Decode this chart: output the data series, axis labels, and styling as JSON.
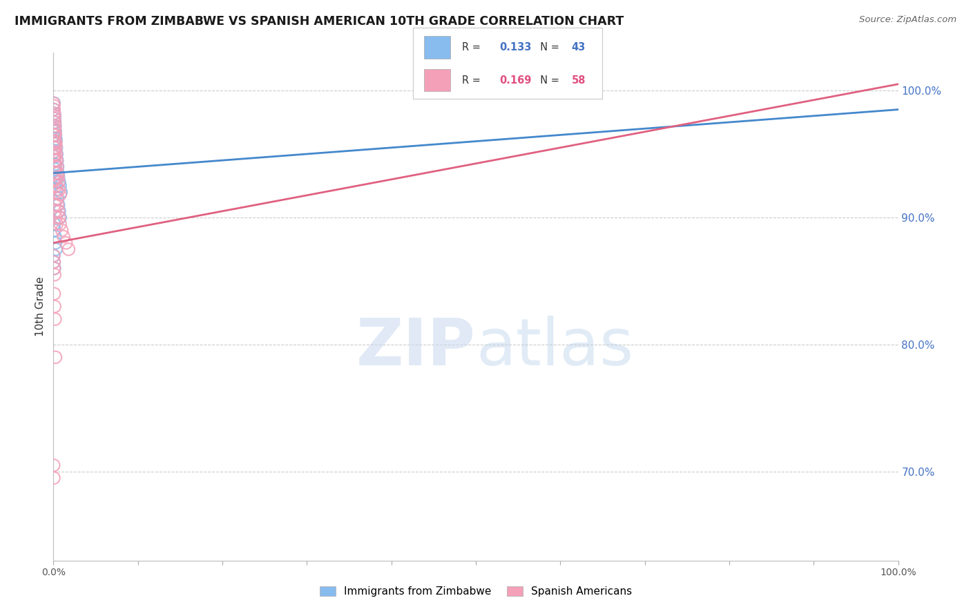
{
  "title": "IMMIGRANTS FROM ZIMBABWE VS SPANISH AMERICAN 10TH GRADE CORRELATION CHART",
  "source": "Source: ZipAtlas.com",
  "ylabel": "10th Grade",
  "right_yticks": [
    70.0,
    80.0,
    90.0,
    100.0
  ],
  "R_blue": 0.133,
  "N_blue": 43,
  "R_pink": 0.169,
  "N_pink": 58,
  "blue_color": "#88bbee",
  "pink_color": "#f4a0b8",
  "blue_line_color": "#4488cc",
  "pink_line_color": "#e06080",
  "xlim": [
    0,
    100
  ],
  "ylim": [
    63,
    103
  ],
  "blue_scatter_x": [
    0.05,
    0.08,
    0.1,
    0.12,
    0.15,
    0.18,
    0.2,
    0.22,
    0.25,
    0.28,
    0.3,
    0.35,
    0.4,
    0.45,
    0.5,
    0.55,
    0.6,
    0.7,
    0.8,
    0.9,
    0.05,
    0.08,
    0.1,
    0.12,
    0.15,
    0.18,
    0.2,
    0.25,
    0.3,
    0.35,
    0.4,
    0.5,
    0.6,
    0.7,
    0.8,
    0.1,
    0.15,
    0.2,
    0.25,
    0.3,
    0.05,
    0.08,
    0.12
  ],
  "blue_scatter_y": [
    98.5,
    99.0,
    98.2,
    97.8,
    98.0,
    97.5,
    97.2,
    96.8,
    96.5,
    96.2,
    96.0,
    95.5,
    95.0,
    94.5,
    94.0,
    93.5,
    93.2,
    92.8,
    92.5,
    92.0,
    97.0,
    96.8,
    96.0,
    95.8,
    95.2,
    94.8,
    94.2,
    93.8,
    93.2,
    92.8,
    92.2,
    91.5,
    91.0,
    90.5,
    90.0,
    89.5,
    89.0,
    88.5,
    88.0,
    87.5,
    87.0,
    86.5,
    86.0
  ],
  "pink_scatter_x": [
    0.03,
    0.05,
    0.07,
    0.1,
    0.12,
    0.15,
    0.18,
    0.2,
    0.22,
    0.25,
    0.28,
    0.3,
    0.35,
    0.4,
    0.45,
    0.5,
    0.55,
    0.6,
    0.7,
    0.8,
    0.05,
    0.08,
    0.1,
    0.12,
    0.15,
    0.18,
    0.22,
    0.25,
    0.3,
    0.35,
    0.4,
    0.45,
    0.5,
    0.6,
    0.7,
    0.8,
    1.0,
    1.2,
    1.5,
    1.8,
    0.05,
    0.08,
    0.1,
    0.15,
    0.2,
    0.25,
    0.1,
    0.15,
    0.18,
    0.22,
    0.08,
    0.05,
    0.3,
    0.4,
    0.12,
    0.03,
    0.05,
    0.08
  ],
  "pink_scatter_y": [
    99.0,
    98.8,
    98.5,
    98.2,
    97.8,
    97.5,
    97.2,
    96.8,
    96.5,
    96.0,
    95.8,
    95.5,
    95.0,
    94.5,
    94.0,
    93.5,
    93.2,
    92.8,
    92.2,
    91.8,
    97.0,
    96.5,
    96.0,
    95.5,
    95.0,
    94.5,
    94.0,
    93.5,
    93.0,
    92.5,
    92.0,
    91.5,
    91.0,
    90.5,
    90.0,
    89.5,
    89.0,
    88.5,
    88.0,
    87.5,
    87.0,
    86.5,
    86.0,
    85.5,
    82.0,
    79.0,
    84.0,
    83.0,
    91.0,
    90.5,
    95.2,
    94.8,
    90.0,
    89.5,
    98.0,
    70.5,
    69.5,
    93.0
  ],
  "blue_trend_x": [
    0,
    100
  ],
  "blue_trend_y": [
    93.5,
    98.5
  ],
  "pink_trend_x": [
    0,
    100
  ],
  "pink_trend_y": [
    88.0,
    100.5
  ],
  "watermark_zip": "ZIP",
  "watermark_atlas": "atlas",
  "background_color": "#ffffff"
}
